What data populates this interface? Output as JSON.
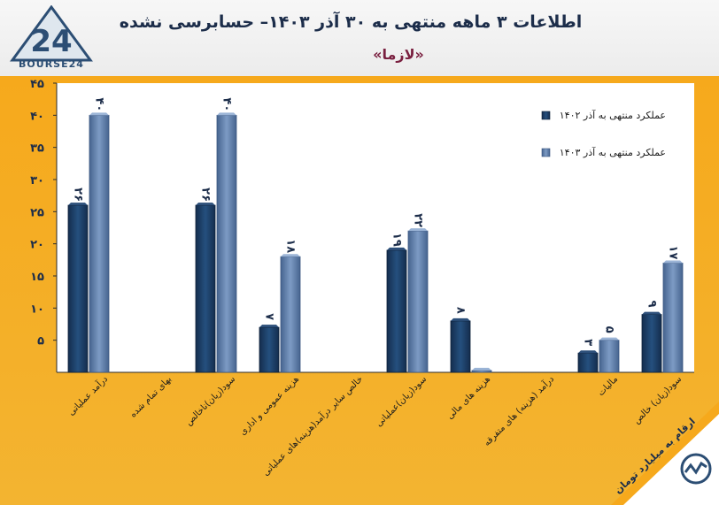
{
  "header": {
    "title": "اطلاعات ۳ ماهه منتهی به ۳۰ آذر ۱۴۰۳– حسابرسی نشده",
    "subtitle": "«لازما»",
    "logo_text": "BOURSE24"
  },
  "unit_note": "ارقام به میلیارد تومان",
  "chart_data": {
    "type": "bar",
    "title": "",
    "xlabel": "",
    "ylabel": "",
    "ylim": [
      0,
      45
    ],
    "yticks": [
      5,
      10,
      15,
      20,
      25,
      30,
      35,
      40,
      45
    ],
    "ytick_labels": [
      "۵",
      "۱۰",
      "۱۵",
      "۲۰",
      "۲۵",
      "۳۰",
      "۳۵",
      "۴۰",
      "۴۵"
    ],
    "grid": false,
    "legend_position": "top-right",
    "categories": [
      "درآمد عملیاتی",
      "بهای تمام شده",
      "سود(زیان)ناخالص",
      "هزینه عمومی و اداری",
      "خالص سایر درآمد(هزینه)های عملیاتی",
      "سود(زیان)عملیاتی",
      "هزینه های مالی",
      "درآمد (هزینه) های متفرقه",
      "مالیات",
      "سود(زیان) خالص"
    ],
    "series": [
      {
        "name": "عملکرد منتهی به آذر ۱۴۰۲",
        "color": "#1b3a62",
        "values": [
          26,
          0,
          26,
          7,
          0,
          19,
          8,
          0,
          3,
          9
        ],
        "labels": [
          "۲۶",
          "",
          "۲۶",
          "۷",
          "",
          "۱۹",
          "۸",
          "",
          "۳",
          "۹"
        ]
      },
      {
        "name": "عملکرد منتهی به آذر ۱۴۰۳",
        "color": "#5a7aa8",
        "values": [
          40,
          0,
          40,
          18,
          0,
          22,
          0.3,
          0,
          5,
          17
        ],
        "labels": [
          "۴۰",
          "",
          "۴۰",
          "۱۸",
          "",
          "۲۲",
          "",
          "",
          "۵",
          "۱۷"
        ]
      }
    ]
  }
}
